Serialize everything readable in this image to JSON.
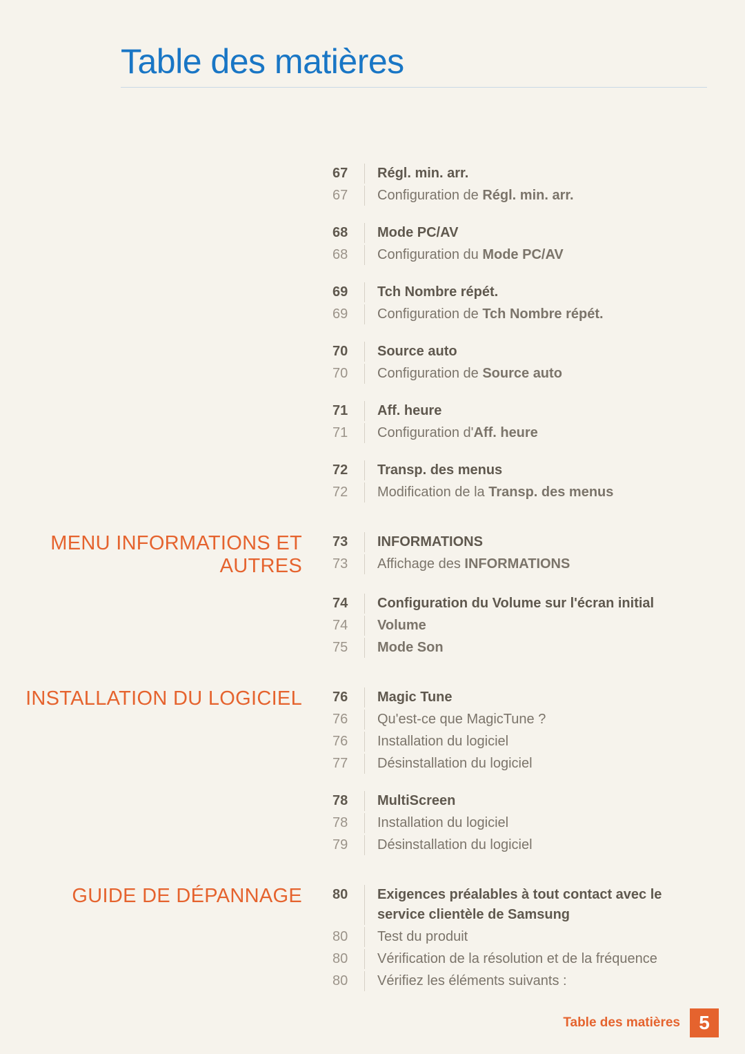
{
  "title": "Table des matières",
  "sections": [
    {
      "label": ""
    },
    {
      "label": "MENU INFORMATIONS ET AUTRES"
    },
    {
      "label": "INSTALLATION DU LOGICIEL"
    },
    {
      "label": "GUIDE DE DÉPANNAGE"
    }
  ],
  "groups": [
    [
      {
        "page": "67",
        "style": "h",
        "pre": "",
        "bold": "Régl. min. arr.",
        "post": ""
      },
      {
        "page": "67",
        "style": "s",
        "pre": "Configuration de ",
        "bold": "Régl. min. arr.",
        "post": ""
      }
    ],
    [
      {
        "page": "68",
        "style": "h",
        "pre": "",
        "bold": "Mode PC/AV",
        "post": ""
      },
      {
        "page": "68",
        "style": "s",
        "pre": "Configuration du ",
        "bold": "Mode PC/AV",
        "post": ""
      }
    ],
    [
      {
        "page": "69",
        "style": "h",
        "pre": "",
        "bold": "Tch Nombre répét.",
        "post": ""
      },
      {
        "page": "69",
        "style": "s",
        "pre": "Configuration de ",
        "bold": "Tch Nombre répét.",
        "post": ""
      }
    ],
    [
      {
        "page": "70",
        "style": "h",
        "pre": "",
        "bold": "Source auto",
        "post": ""
      },
      {
        "page": "70",
        "style": "s",
        "pre": "Configuration de ",
        "bold": "Source auto",
        "post": ""
      }
    ],
    [
      {
        "page": "71",
        "style": "h",
        "pre": "",
        "bold": "Aff. heure",
        "post": ""
      },
      {
        "page": "71",
        "style": "s",
        "pre": "Configuration d'",
        "bold": "Aff. heure",
        "post": ""
      }
    ],
    [
      {
        "page": "72",
        "style": "h",
        "pre": "",
        "bold": "Transp. des menus",
        "post": ""
      },
      {
        "page": "72",
        "style": "s",
        "pre": "Modification de la ",
        "bold": "Transp. des menus",
        "post": ""
      }
    ],
    [
      {
        "page": "73",
        "style": "h",
        "pre": "",
        "bold": "INFORMATIONS",
        "post": ""
      },
      {
        "page": "73",
        "style": "s",
        "pre": "Affichage des ",
        "bold": "INFORMATIONS",
        "post": ""
      }
    ],
    [
      {
        "page": "74",
        "style": "h",
        "pre": "",
        "bold": "Configuration du Volume sur l'écran initial",
        "post": ""
      },
      {
        "page": "74",
        "style": "s",
        "pre": "",
        "bold": "Volume",
        "post": ""
      },
      {
        "page": "75",
        "style": "s",
        "pre": "",
        "bold": "Mode Son",
        "post": ""
      }
    ],
    [
      {
        "page": "76",
        "style": "h",
        "pre": "",
        "bold": "Magic Tune",
        "post": ""
      },
      {
        "page": "76",
        "style": "s",
        "pre": "Qu'est-ce que MagicTune ?",
        "bold": "",
        "post": ""
      },
      {
        "page": "76",
        "style": "s",
        "pre": "Installation du logiciel",
        "bold": "",
        "post": ""
      },
      {
        "page": "77",
        "style": "s",
        "pre": "Désinstallation du logiciel",
        "bold": "",
        "post": ""
      }
    ],
    [
      {
        "page": "78",
        "style": "h",
        "pre": "",
        "bold": "MultiScreen",
        "post": ""
      },
      {
        "page": "78",
        "style": "s",
        "pre": "Installation du logiciel",
        "bold": "",
        "post": ""
      },
      {
        "page": "79",
        "style": "s",
        "pre": "Désinstallation du logiciel",
        "bold": "",
        "post": ""
      }
    ],
    [
      {
        "page": "80",
        "style": "h",
        "pre": "",
        "bold": "Exigences préalables à tout contact avec le service clientèle de Samsung",
        "post": ""
      },
      {
        "page": "80",
        "style": "s",
        "pre": "Test du produit",
        "bold": "",
        "post": ""
      },
      {
        "page": "80",
        "style": "s",
        "pre": "Vérification de la résolution et de la fréquence",
        "bold": "",
        "post": ""
      },
      {
        "page": "80",
        "style": "s",
        "pre": "Vérifiez les éléments suivants :",
        "bold": "",
        "post": ""
      }
    ]
  ],
  "layout": {
    "sectionForGroup": [
      0,
      0,
      0,
      0,
      0,
      0,
      1,
      1,
      2,
      2,
      3
    ],
    "bigGapBefore": [
      6,
      8,
      10
    ]
  },
  "footer": {
    "label": "Table des matières",
    "page": "5"
  },
  "colors": {
    "accent_blue": "#1976c5",
    "accent_orange": "#e5632e",
    "bg": "#f6f3ec",
    "text_dark": "#5f584e",
    "text_light": "#9b9389"
  }
}
